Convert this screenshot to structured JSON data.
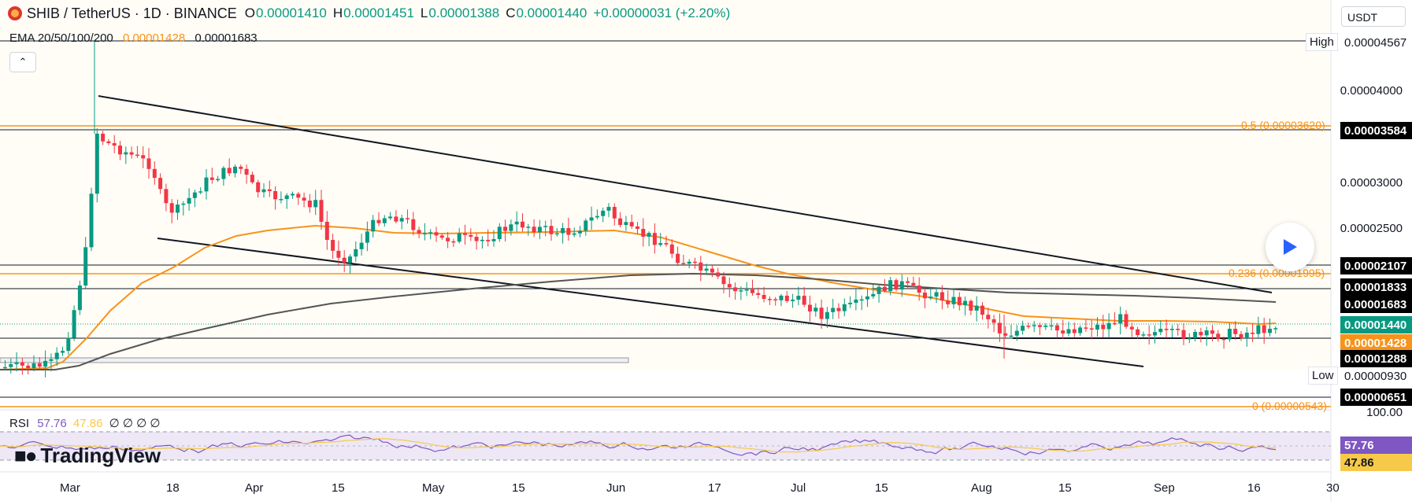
{
  "header": {
    "symbol": "SHIB / TetherUS · 1D · BINANCE",
    "o_label": "O",
    "o_value": "0.00001410",
    "h_label": "H",
    "h_value": "0.00001451",
    "l_label": "L",
    "l_value": "0.00001388",
    "c_label": "C",
    "c_value": "0.00001440",
    "change": "+0.00000031 (+2.20%)"
  },
  "ema": {
    "label": "EMA 20/50/100/200",
    "v1": "0.00001428",
    "v2": "0.00001683"
  },
  "rsi": {
    "label": "RSI",
    "v1": "57.76",
    "v2": "47.86",
    "zeros": "∅ ∅ ∅ ∅"
  },
  "currency": "USDT",
  "price_axis": [
    "0.00004000",
    "0.00003000",
    "0.00002500",
    "100.00"
  ],
  "price_tags": {
    "high_label": "High",
    "high_value": "0.00004567",
    "low_label": "Low",
    "low_value": "0.00000930",
    "t3584": "0.00003584",
    "t2107": "0.00002107",
    "t1833": "0.00001833",
    "t1683": "0.00001683",
    "t1440": "0.00001440",
    "t1428": "0.00001428",
    "t1288": "0.00001288",
    "t0651": "0.00000651",
    "rsi1": "57.76",
    "rsi2": "47.86"
  },
  "fib": {
    "f05": "0.5 (0.00003620)",
    "f0236": "0.236 (0.00001995)",
    "f0": "0 (0.00000543)"
  },
  "time_axis": [
    "Mar",
    "18",
    "Apr",
    "15",
    "May",
    "15",
    "Jun",
    "17",
    "Jul",
    "15",
    "Aug",
    "15",
    "Sep",
    "16",
    "30"
  ],
  "brand": "TradingView",
  "colors": {
    "up": "#089981",
    "down": "#f23645",
    "ema_orange": "#f7931a",
    "ema_gray": "#555555",
    "fib": "#f7931a",
    "rsi": "#7e57c2",
    "rsi_ma": "#f7c948",
    "tag_green": "#089981",
    "tag_orange": "#f7931a",
    "tag_black": "#000000"
  },
  "chart_data": {
    "type": "candlestick",
    "title": "SHIB / TetherUS · 1D · BINANCE",
    "x_range": [
      "2024-02-26",
      "2024-09-30"
    ],
    "y_range": [
      5.4e-06,
      4.64e-05
    ],
    "key_levels": [
      3.584e-05,
      2.107e-05,
      1.833e-05,
      1.683e-05,
      1.288e-05,
      6.51e-06
    ],
    "fib_levels": {
      "0.5": 3.62e-05,
      "0.236": 1.995e-05,
      "0": 5.43e-06
    },
    "high": 4.567e-05,
    "low": 9.3e-06,
    "last": {
      "open": 1.41e-05,
      "high": 1.451e-05,
      "low": 1.388e-05,
      "close": 1.44e-05
    },
    "ema_values": [
      1.428e-05,
      1.683e-05
    ],
    "rsi": {
      "value": 57.76,
      "ma": 47.86
    }
  }
}
